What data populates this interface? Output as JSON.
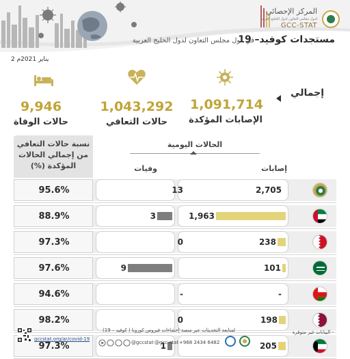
{
  "header": {
    "title": "مستجدات كوفيد– 19",
    "subtitle": "في دول مجلس التعاون لدول الخليج العربية",
    "logo_ar": "المركز الإحصائي",
    "logo_small": "لدول مجلس التعاون لدول الخليج العربية",
    "logo_en": "GCC-STAT",
    "colors": {
      "gold": "#c0a437",
      "bar_cases": "#e3d37a",
      "bar_deaths": "#7e7e7e"
    }
  },
  "date": "2 يناير 2021م",
  "summary": {
    "label": "إجمالي",
    "confirmed": {
      "value": "1,091,714",
      "label": "الإصابات المؤكدة",
      "icon": "virus-icon"
    },
    "recovered": {
      "value": "1,043,292",
      "label": "حالات التعافي",
      "icon": "heart-pulse-icon"
    },
    "deaths": {
      "value": "9,946",
      "label": "حالات الوفاة",
      "icon": "patient-bed-icon"
    }
  },
  "table": {
    "daily_header": "الحالات اليومية",
    "col_cases": "إصابات",
    "col_deaths": "وفيات",
    "rate_header": [
      "نسبة حالات التعافي",
      "من إجمالي الحالات",
      "المؤكدة (%)"
    ],
    "rows": [
      {
        "country": "GCC",
        "flag": "gcc-emblem-icon",
        "cases": "2,705",
        "cases_num": 2705,
        "deaths": "13",
        "deaths_num": 13,
        "rate": "95.6%",
        "bar": false
      },
      {
        "country": "UAE",
        "flag": "uae-flag-icon",
        "cases": "1,963",
        "cases_num": 1963,
        "deaths": "3",
        "deaths_num": 3,
        "rate": "88.9%",
        "bar": true
      },
      {
        "country": "Bahrain",
        "flag": "bahrain-flag-icon",
        "cases": "238",
        "cases_num": 238,
        "deaths": "0",
        "deaths_num": 0,
        "rate": "97.3%",
        "bar": true
      },
      {
        "country": "Saudi Arabia",
        "flag": "saudi-flag-icon",
        "cases": "101",
        "cases_num": 101,
        "deaths": "9",
        "deaths_num": 9,
        "rate": "97.6%",
        "bar": true
      },
      {
        "country": "Oman",
        "flag": "oman-flag-icon",
        "cases": "-",
        "cases_num": 0,
        "deaths": "-",
        "deaths_num": 0,
        "rate": "94.6%",
        "bar": false
      },
      {
        "country": "Qatar",
        "flag": "qatar-flag-icon",
        "cases": "198",
        "cases_num": 198,
        "deaths": "0",
        "deaths_num": 0,
        "rate": "98.2%",
        "bar": true
      },
      {
        "country": "Kuwait",
        "flag": "kuwait-flag-icon",
        "cases": "205",
        "cases_num": 205,
        "deaths": "1",
        "deaths_num": 1,
        "rate": "97.3%",
        "bar": true
      }
    ]
  },
  "footer": {
    "note": "- البيانات غير متوفرة",
    "follow": "لمتابعة التحديثات عبر منصة إحصاءات فيروس كورونا ( كوفيد – 19)",
    "url": "gccstat.org/ar/covid-19",
    "handle_1": "@gccstat",
    "handle_2": "@gcc-stat",
    "phone": "+968 2434 6482"
  }
}
